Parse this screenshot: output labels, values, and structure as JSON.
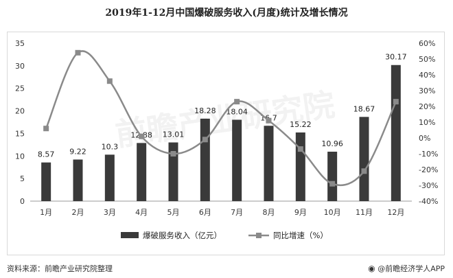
{
  "title": "2019年1-12月中国爆破服务收入(月度)统计及增长情况",
  "footer": {
    "source": "资料来源：前瞻产业研究院整理",
    "brand_icon": "camera-logo",
    "brand": "@前瞻经济学人APP"
  },
  "watermark": "前瞻产业研究院",
  "chart_data": {
    "type": "bar",
    "categories": [
      "1月",
      "2月",
      "3月",
      "4月",
      "5月",
      "6月",
      "7月",
      "8月",
      "9月",
      "10月",
      "11月",
      "12月"
    ],
    "series": [
      {
        "name": "爆破服务收入（亿元）",
        "type": "bar",
        "axis": "left",
        "color": "#3a3a3a",
        "values": [
          8.57,
          9.22,
          10.3,
          12.88,
          13.01,
          18.28,
          18.04,
          16.7,
          15.22,
          10.96,
          18.67,
          30.17
        ],
        "labels": [
          "8.57",
          "9.22",
          "10.3",
          "12.88",
          "13.01",
          "18.28",
          "18.04",
          "16.7",
          "15.22",
          "10.96",
          "18.67",
          "30.17"
        ]
      },
      {
        "name": "同比增速（%）",
        "type": "line",
        "axis": "right",
        "color": "#8a8a8a",
        "smooth": true,
        "values": [
          6,
          54,
          36,
          1,
          -10,
          -1,
          23,
          11,
          -7,
          -29,
          -21,
          23
        ]
      }
    ],
    "y_left": {
      "ylim": [
        0,
        35
      ],
      "ticks": [
        0,
        5,
        10,
        15,
        20,
        25,
        30,
        35
      ],
      "tick_labels": [
        "0",
        "5",
        "10",
        "15",
        "20",
        "25",
        "30",
        "35"
      ]
    },
    "y_right": {
      "ylim": [
        -40,
        60
      ],
      "ticks": [
        -40,
        -30,
        -20,
        -10,
        0,
        10,
        20,
        30,
        40,
        50,
        60
      ],
      "tick_labels": [
        "-40%",
        "-30%",
        "-20%",
        "-10%",
        "0%",
        "10%",
        "20%",
        "30%",
        "40%",
        "50%",
        "60%"
      ]
    },
    "grid": false,
    "legend_position": "bottom"
  }
}
